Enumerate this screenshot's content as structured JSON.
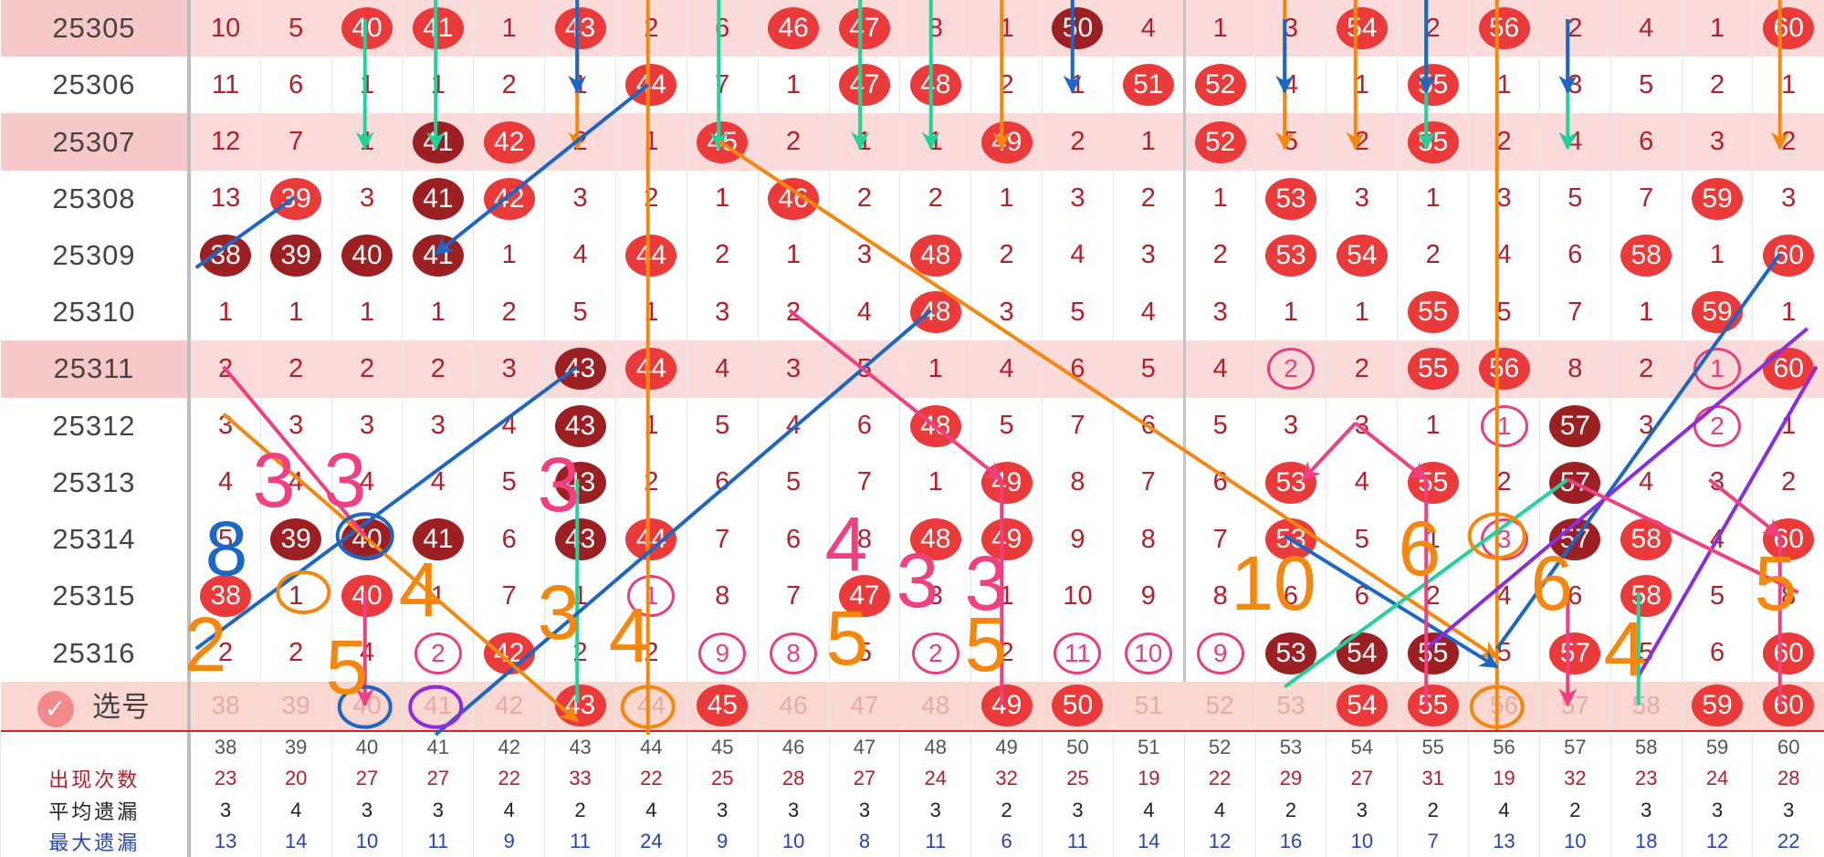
{
  "columns": [
    "38",
    "39",
    "40",
    "41",
    "42",
    "43",
    "44",
    "45",
    "46",
    "47",
    "48",
    "49",
    "50",
    "51",
    "52",
    "53",
    "54",
    "55",
    "56",
    "57",
    "58",
    "59",
    "60"
  ],
  "rows": [
    {
      "issue": "25305",
      "hl": true,
      "cells": [
        "10",
        "5",
        "40",
        "41",
        "1",
        "43",
        "2",
        "6",
        "46",
        "47",
        "8",
        "1",
        "50",
        "4",
        "1",
        "3",
        "54",
        "2",
        "56",
        "2",
        "4",
        "1",
        "60"
      ],
      "balls": [
        2,
        3,
        5,
        8,
        9,
        12,
        16,
        18,
        22
      ],
      "dark": [
        12
      ]
    },
    {
      "issue": "25306",
      "hl": false,
      "cells": [
        "11",
        "6",
        "1",
        "1",
        "2",
        "1",
        "44",
        "7",
        "1",
        "47",
        "48",
        "2",
        "1",
        "51",
        "52",
        "4",
        "1",
        "55",
        "1",
        "3",
        "5",
        "2",
        "1"
      ],
      "balls": [
        6,
        9,
        10,
        13,
        14,
        17
      ],
      "dark": []
    },
    {
      "issue": "25307",
      "hl": true,
      "cells": [
        "12",
        "7",
        "1",
        "41",
        "42",
        "2",
        "1",
        "45",
        "2",
        "1",
        "1",
        "49",
        "2",
        "1",
        "52",
        "5",
        "2",
        "55",
        "2",
        "4",
        "6",
        "3",
        "2"
      ],
      "balls": [
        3,
        4,
        7,
        11,
        14,
        17
      ],
      "dark": [
        3
      ]
    },
    {
      "issue": "25308",
      "hl": false,
      "cells": [
        "13",
        "39",
        "3",
        "41",
        "42",
        "3",
        "2",
        "1",
        "46",
        "2",
        "2",
        "1",
        "3",
        "2",
        "1",
        "53",
        "3",
        "1",
        "3",
        "5",
        "7",
        "59",
        "3"
      ],
      "balls": [
        1,
        3,
        4,
        8,
        15,
        21
      ],
      "dark": [
        3
      ]
    },
    {
      "issue": "25309",
      "hl": false,
      "cells": [
        "38",
        "39",
        "40",
        "41",
        "1",
        "4",
        "44",
        "2",
        "1",
        "3",
        "48",
        "2",
        "4",
        "3",
        "2",
        "53",
        "54",
        "2",
        "4",
        "6",
        "58",
        "1",
        "60"
      ],
      "balls": [
        0,
        1,
        2,
        3,
        6,
        10,
        15,
        16,
        20,
        22
      ],
      "dark": [
        0,
        1,
        2,
        3
      ]
    },
    {
      "issue": "25310",
      "hl": false,
      "cells": [
        "1",
        "1",
        "1",
        "1",
        "2",
        "5",
        "1",
        "3",
        "2",
        "4",
        "48",
        "3",
        "5",
        "4",
        "3",
        "1",
        "1",
        "55",
        "5",
        "7",
        "1",
        "59",
        "1"
      ],
      "balls": [
        10,
        17,
        21
      ],
      "dark": []
    },
    {
      "issue": "25311",
      "hl": true,
      "cells": [
        "2",
        "2",
        "2",
        "2",
        "3",
        "43",
        "44",
        "4",
        "3",
        "5",
        "1",
        "4",
        "6",
        "5",
        "4",
        "2",
        "2",
        "55",
        "56",
        "8",
        "2",
        "1",
        "60"
      ],
      "balls": [
        5,
        6,
        17,
        18,
        22
      ],
      "dark": [
        5
      ],
      "rings": [
        15,
        21
      ]
    },
    {
      "issue": "25312",
      "hl": false,
      "cells": [
        "3",
        "3",
        "3",
        "3",
        "4",
        "43",
        "1",
        "5",
        "4",
        "6",
        "48",
        "5",
        "7",
        "6",
        "5",
        "3",
        "3",
        "1",
        "1",
        "57",
        "3",
        "2",
        "1"
      ],
      "balls": [
        5,
        10,
        19
      ],
      "dark": [
        5,
        19
      ],
      "rings": [
        18,
        21
      ]
    },
    {
      "issue": "25313",
      "hl": false,
      "cells": [
        "4",
        "4",
        "4",
        "4",
        "5",
        "43",
        "2",
        "6",
        "5",
        "7",
        "1",
        "49",
        "8",
        "7",
        "6",
        "53",
        "4",
        "55",
        "2",
        "57",
        "4",
        "3",
        "2"
      ],
      "balls": [
        5,
        11,
        15,
        17,
        19
      ],
      "dark": [
        5,
        19
      ]
    },
    {
      "issue": "25314",
      "hl": false,
      "cells": [
        "5",
        "39",
        "40",
        "41",
        "6",
        "43",
        "44",
        "7",
        "6",
        "8",
        "48",
        "49",
        "9",
        "8",
        "7",
        "53",
        "5",
        "1",
        "3",
        "57",
        "58",
        "4",
        "60"
      ],
      "balls": [
        1,
        2,
        3,
        5,
        6,
        10,
        11,
        15,
        19,
        20,
        22
      ],
      "dark": [
        1,
        2,
        3,
        5,
        19
      ],
      "rings": [
        18
      ]
    },
    {
      "issue": "25315",
      "hl": false,
      "cells": [
        "38",
        "1",
        "40",
        "1",
        "7",
        "1",
        "1",
        "8",
        "7",
        "47",
        "3",
        "1",
        "10",
        "9",
        "8",
        "6",
        "6",
        "2",
        "4",
        "6",
        "58",
        "5",
        "8"
      ],
      "balls": [
        0,
        2,
        9,
        20
      ],
      "dark": [],
      "rings": [
        6
      ]
    },
    {
      "issue": "25316",
      "hl": false,
      "cells": [
        "2",
        "2",
        "4",
        "2",
        "42",
        "2",
        "2",
        "9",
        "8",
        "5",
        "2",
        "2",
        "11",
        "10",
        "9",
        "53",
        "54",
        "55",
        "5",
        "57",
        "5",
        "6",
        "60"
      ],
      "balls": [
        4,
        15,
        16,
        17,
        19,
        22
      ],
      "dark": [
        15,
        16,
        17
      ],
      "rings": [
        3,
        7,
        8,
        10,
        12,
        13,
        14
      ]
    }
  ],
  "select_row": {
    "label": "选号",
    "check_icon": "check-circle-icon",
    "cells": [
      "38",
      "39",
      "40",
      "41",
      "42",
      "43",
      "44",
      "45",
      "46",
      "47",
      "48",
      "49",
      "50",
      "51",
      "52",
      "53",
      "54",
      "55",
      "56",
      "57",
      "58",
      "59",
      "60"
    ],
    "balls": [
      5,
      7,
      11,
      12,
      16,
      17,
      21,
      22
    ]
  },
  "footer": {
    "count_label": "出现次数",
    "avg_label": "平均遗漏",
    "max_label": "最大遗漏",
    "counts": [
      "23",
      "20",
      "27",
      "27",
      "22",
      "33",
      "22",
      "25",
      "28",
      "27",
      "24",
      "32",
      "25",
      "19",
      "22",
      "29",
      "27",
      "31",
      "19",
      "32",
      "23",
      "24",
      "28"
    ],
    "avgs": [
      "3",
      "4",
      "3",
      "3",
      "4",
      "2",
      "4",
      "3",
      "3",
      "3",
      "3",
      "2",
      "3",
      "4",
      "4",
      "2",
      "3",
      "2",
      "4",
      "2",
      "3",
      "3",
      "3"
    ],
    "maxs": [
      "13",
      "14",
      "10",
      "11",
      "9",
      "11",
      "24",
      "9",
      "10",
      "8",
      "11",
      "6",
      "11",
      "14",
      "12",
      "16",
      "10",
      "7",
      "13",
      "10",
      "18",
      "12",
      "22"
    ]
  },
  "annotations": [
    "3",
    "3",
    "3",
    "4",
    "3",
    "4",
    "4",
    "3",
    "3",
    "5",
    "5",
    "6",
    "10",
    "6",
    "5",
    "8",
    "2",
    "5",
    "4"
  ],
  "colors": {
    "orange": "#f5870f",
    "green": "#1fd39a",
    "blue": "#1c66c4",
    "pink": "#f0407f",
    "purple": "#8b2be2",
    "dark_red": "#9c1f22",
    "red": "#ea3a3a"
  }
}
